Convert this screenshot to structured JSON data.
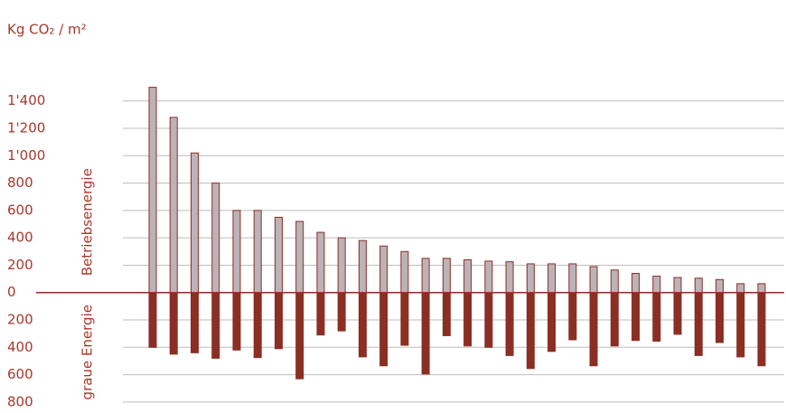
{
  "chart_data": {
    "type": "diverging-bar",
    "title": "Kg CO₂ / m²",
    "series": [
      {
        "name": "Betriebsenergie",
        "color": "#bcb3b8",
        "values": [
          1500,
          1280,
          1020,
          800,
          600,
          600,
          550,
          520,
          440,
          400,
          380,
          340,
          300,
          250,
          250,
          240,
          230,
          225,
          210,
          210,
          210,
          190,
          165,
          140,
          120,
          110,
          105,
          95,
          65,
          65
        ]
      },
      {
        "name": "graue Energie",
        "color": "#8b2e24",
        "values": [
          -400,
          -450,
          -440,
          -480,
          -420,
          -475,
          -410,
          -630,
          -310,
          -280,
          -470,
          -535,
          -385,
          -595,
          -315,
          -390,
          -400,
          -460,
          -555,
          -430,
          -345,
          -535,
          -390,
          -350,
          -355,
          -305,
          -460,
          -365,
          -470,
          -535
        ]
      }
    ],
    "ylim": [
      -880,
      1550
    ],
    "yticks": [
      {
        "value": -800,
        "label": "800"
      },
      {
        "value": -600,
        "label": "600"
      },
      {
        "value": -400,
        "label": "400"
      },
      {
        "value": -200,
        "label": "200"
      },
      0,
      200,
      400,
      600,
      800,
      {
        "value": 1000,
        "label": "1'000"
      },
      {
        "value": 1200,
        "label": "1'200"
      },
      {
        "value": 1400,
        "label": "1'400"
      }
    ],
    "grid": true
  }
}
